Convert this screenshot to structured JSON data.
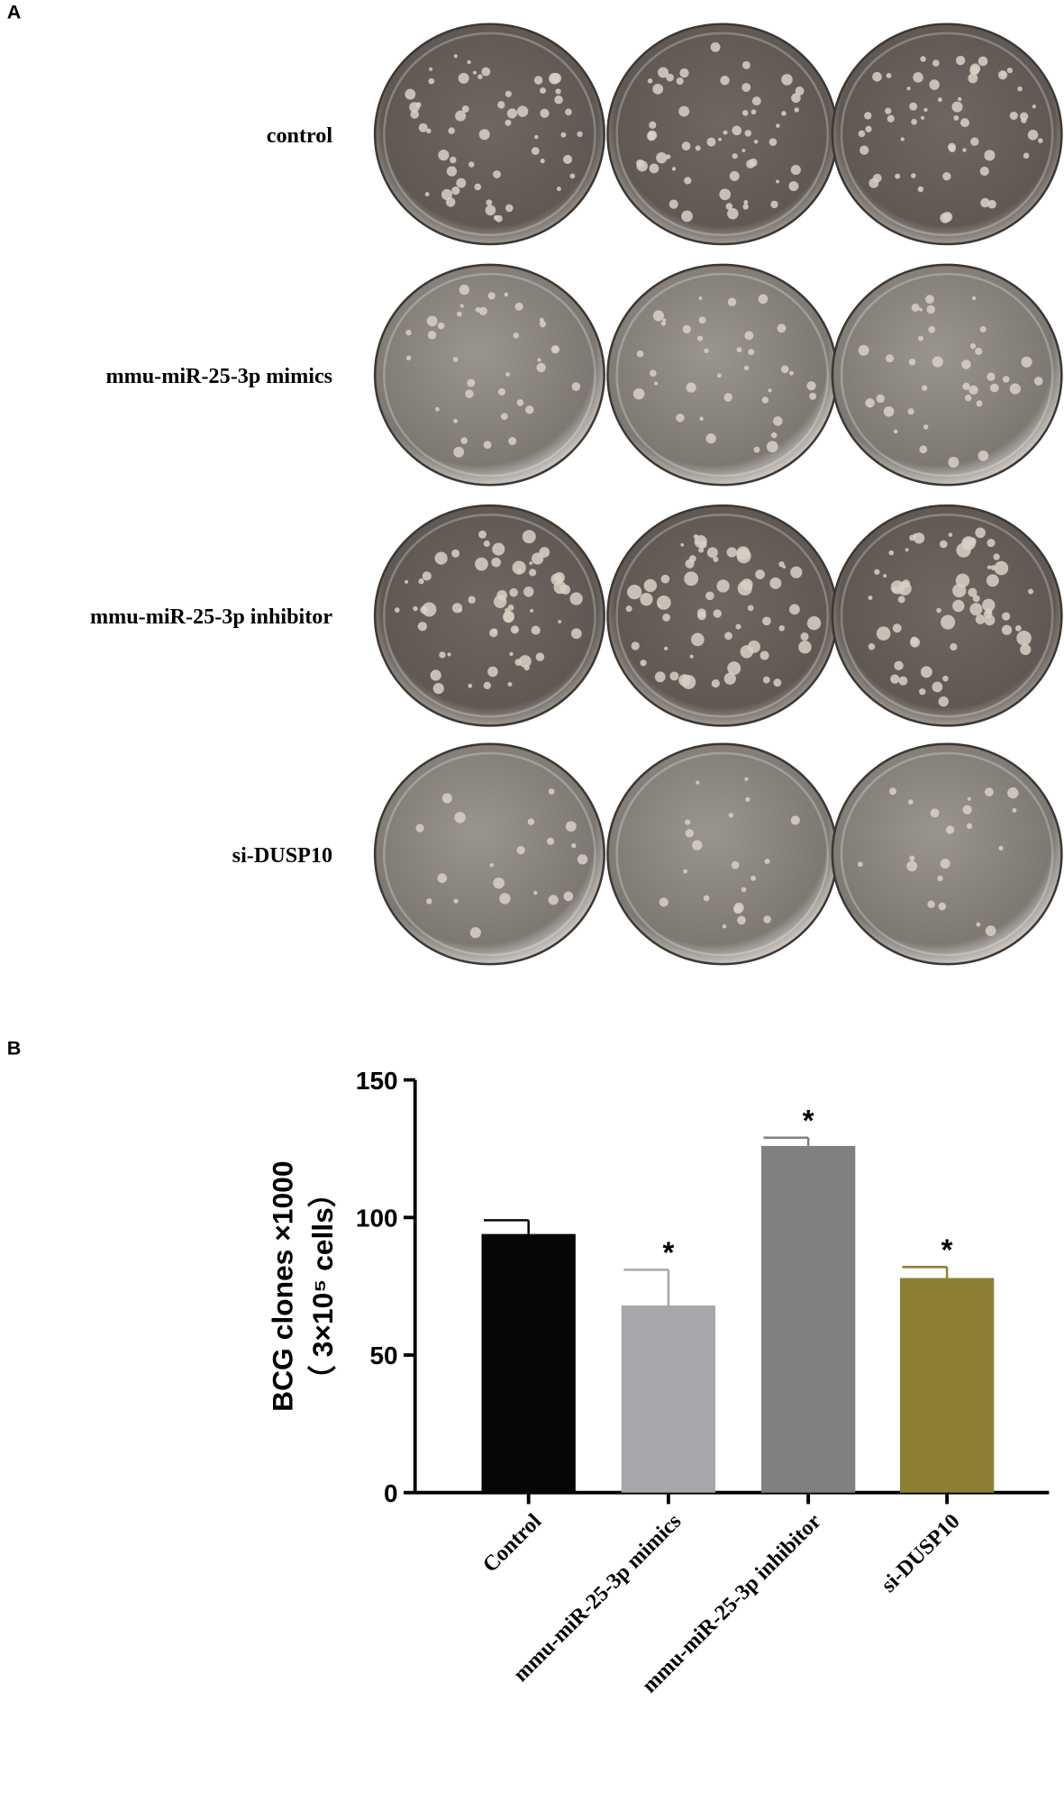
{
  "panel_a": {
    "label": "A",
    "row_labels": [
      "control",
      "mmu-miR-25-3p mimics",
      "mmu-miR-25-3p inhibitor",
      "si-DUSP10"
    ]
  },
  "chart_data": {
    "type": "bar",
    "panel_label": "B",
    "y_label": [
      "BCG clones ×1000",
      "（ 3×10⁵ cells）"
    ],
    "categories": [
      "Control",
      "mmu-miR-25-3p mimics",
      "mmu-miR-25-3p inhibitor",
      "si-DUSP10"
    ],
    "values": [
      94,
      68,
      126,
      78
    ],
    "errors": [
      5,
      13,
      3,
      4
    ],
    "colors": [
      "#060606",
      "#a6a7aa",
      "#7f8180",
      "#8c8035"
    ],
    "significance": [
      null,
      "*",
      "*",
      "*"
    ],
    "ylim": [
      0,
      150
    ],
    "yticks": [
      0,
      50,
      100,
      150
    ]
  }
}
